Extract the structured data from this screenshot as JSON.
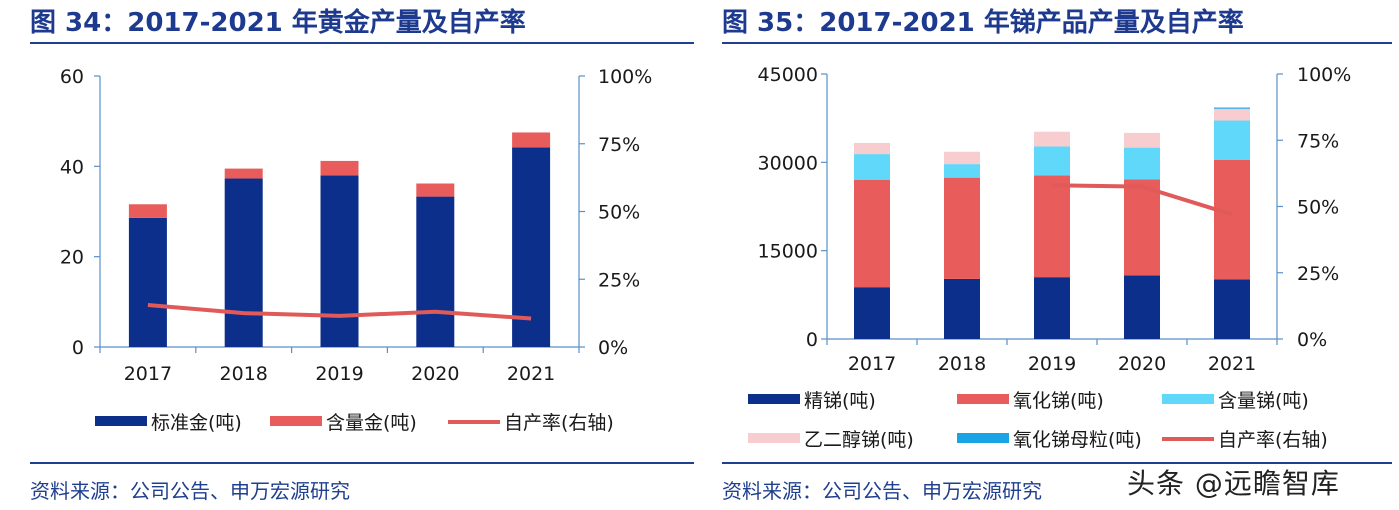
{
  "charts": [
    {
      "title": "图 34：2017-2021 年黄金产量及自产率",
      "source": "资料来源：公司公告、申万宏源研究"
    },
    {
      "title": "图 35：2017-2021 年锑产品产量及自产率",
      "source": "资料来源：公司公告、申万宏源研究"
    }
  ],
  "watermark": "头条 @远瞻智库",
  "chart_data": [
    {
      "type": "bar",
      "stacked": true,
      "title": "图 34：2017-2021 年黄金产量及自产率",
      "categories": [
        "2017",
        "2018",
        "2019",
        "2020",
        "2021"
      ],
      "ylim": [
        0,
        60
      ],
      "yticks": [
        "0",
        "20",
        "40",
        "60"
      ],
      "y2lim": [
        0,
        1
      ],
      "y2ticks": [
        "0%",
        "25%",
        "50%",
        "75%",
        "100%"
      ],
      "series": [
        {
          "name": "标准金(吨)",
          "kind": "bar",
          "axis": "left",
          "color": "#0c2f8c",
          "values": [
            28.6,
            37.3,
            38.0,
            33.3,
            44.2
          ]
        },
        {
          "name": "含量金(吨)",
          "kind": "bar",
          "axis": "left",
          "color": "#e85c5c",
          "values": [
            3.0,
            2.2,
            3.2,
            2.9,
            3.3
          ]
        },
        {
          "name": "自产率(右轴)",
          "kind": "line",
          "axis": "right",
          "color": "#e05a5a",
          "values": [
            0.155,
            0.125,
            0.115,
            0.13,
            0.105
          ]
        }
      ],
      "legend": "bottom",
      "grid": false
    },
    {
      "type": "bar",
      "stacked": true,
      "title": "图 35：2017-2021 年锑产品产量及自产率",
      "categories": [
        "2017",
        "2018",
        "2019",
        "2020",
        "2021"
      ],
      "ylim": [
        0,
        45000
      ],
      "yticks": [
        "0",
        "15000",
        "30000",
        "45000"
      ],
      "y2lim": [
        0,
        1
      ],
      "y2ticks": [
        "0%",
        "25%",
        "50%",
        "75%",
        "100%"
      ],
      "series": [
        {
          "name": "精锑(吨)",
          "kind": "bar",
          "axis": "left",
          "color": "#0c2f8c",
          "values": [
            8800,
            10200,
            10500,
            10800,
            10100
          ]
        },
        {
          "name": "氧化锑(吨)",
          "kind": "bar",
          "axis": "left",
          "color": "#e85c5c",
          "values": [
            18200,
            17200,
            17300,
            16300,
            20300
          ]
        },
        {
          "name": "含量锑(吨)",
          "kind": "bar",
          "axis": "left",
          "color": "#60d8fa",
          "values": [
            4400,
            2300,
            4900,
            5400,
            6700
          ]
        },
        {
          "name": "乙二醇锑(吨)",
          "kind": "bar",
          "axis": "left",
          "color": "#f8cdd0",
          "values": [
            1900,
            2100,
            2500,
            2500,
            2000
          ]
        },
        {
          "name": "氧化锑母粒(吨)",
          "kind": "bar",
          "axis": "left",
          "color": "#1aa4e6",
          "values": [
            0,
            0,
            0,
            0,
            200
          ]
        },
        {
          "name": "自产率(右轴)",
          "kind": "line",
          "axis": "right",
          "color": "#e05a5a",
          "values": [
            null,
            null,
            0.58,
            0.575,
            0.47
          ]
        }
      ],
      "legend": "bottom",
      "grid": false
    }
  ]
}
